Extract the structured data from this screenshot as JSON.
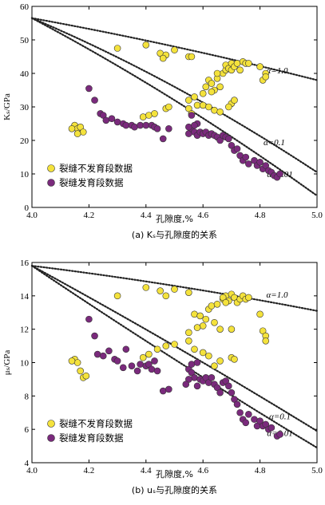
{
  "colors": {
    "yellow": "#f4e23c",
    "purple": "#7a2a7c",
    "stroke": "#333333",
    "curve": "#222222"
  },
  "chart_data": [
    {
      "id": "ks",
      "type": "scatter",
      "caption": "(a) Kₛ与孔隙度的关系",
      "ylabel": "Kₛ/GPa",
      "xlabel": "孔隙度,%",
      "xlim": [
        4.0,
        5.0
      ],
      "ylim": [
        0,
        60
      ],
      "xticks": [
        "4.0",
        "4.2",
        "4.4",
        "4.6",
        "4.8",
        "5.0"
      ],
      "yticks": [
        "0",
        "10",
        "20",
        "30",
        "40",
        "50",
        "60"
      ],
      "legend": [
        "裂缝不发育段数据",
        "裂缝发育段数据"
      ],
      "curves": [
        {
          "label": "α=1.0",
          "points": [
            [
              4.0,
              56.5
            ],
            [
              4.5,
              48.0
            ],
            [
              5.0,
              38.0
            ]
          ]
        },
        {
          "label": "α=0.1",
          "points": [
            [
              4.0,
              56.5
            ],
            [
              4.5,
              36.0
            ],
            [
              5.0,
              10.5
            ]
          ]
        },
        {
          "label": "α=0.01",
          "points": [
            [
              4.0,
              56.5
            ],
            [
              4.5,
              32.0
            ],
            [
              5.0,
              3.5
            ]
          ]
        }
      ],
      "series": [
        {
          "name": "裂缝不发育段数据",
          "points": [
            [
              4.15,
              24.5
            ],
            [
              4.16,
              23.5
            ],
            [
              4.17,
              24.0
            ],
            [
              4.18,
              22.5
            ],
            [
              4.16,
              22.0
            ],
            [
              4.14,
              23.5
            ],
            [
              4.3,
              47.5
            ],
            [
              4.4,
              48.5
            ],
            [
              4.45,
              46.0
            ],
            [
              4.47,
              45.5
            ],
            [
              4.46,
              44.5
            ],
            [
              4.5,
              47.0
            ],
            [
              4.55,
              45.0
            ],
            [
              4.56,
              45.0
            ],
            [
              4.39,
              27.0
            ],
            [
              4.41,
              27.5
            ],
            [
              4.43,
              28.0
            ],
            [
              4.47,
              29.5
            ],
            [
              4.48,
              30.0
            ],
            [
              4.55,
              29.5
            ],
            [
              4.56,
              28.0
            ],
            [
              4.58,
              30.5
            ],
            [
              4.6,
              30.5
            ],
            [
              4.62,
              30.0
            ],
            [
              4.64,
              29.0
            ],
            [
              4.66,
              28.5
            ],
            [
              4.7,
              31.0
            ],
            [
              4.71,
              32.0
            ],
            [
              4.69,
              30.0
            ],
            [
              4.55,
              32.0
            ],
            [
              4.57,
              33.0
            ],
            [
              4.6,
              34.0
            ],
            [
              4.61,
              36.0
            ],
            [
              4.62,
              38.0
            ],
            [
              4.63,
              37.0
            ],
            [
              4.64,
              35.0
            ],
            [
              4.65,
              38.5
            ],
            [
              4.66,
              36.0
            ],
            [
              4.67,
              40.0
            ],
            [
              4.68,
              41.0
            ],
            [
              4.68,
              42.5
            ],
            [
              4.69,
              41.5
            ],
            [
              4.7,
              43.0
            ],
            [
              4.7,
              41.0
            ],
            [
              4.71,
              42.0
            ],
            [
              4.72,
              43.0
            ],
            [
              4.73,
              41.0
            ],
            [
              4.74,
              43.5
            ],
            [
              4.75,
              43.0
            ],
            [
              4.76,
              43.0
            ],
            [
              4.65,
              40.0
            ],
            [
              4.63,
              34.5
            ],
            [
              4.8,
              42.0
            ],
            [
              4.81,
              38.0
            ],
            [
              4.82,
              40.0
            ],
            [
              4.82,
              39.0
            ]
          ]
        },
        {
          "name": "裂缝发育段数据",
          "points": [
            [
              4.2,
              35.5
            ],
            [
              4.22,
              32.0
            ],
            [
              4.24,
              28.0
            ],
            [
              4.25,
              27.5
            ],
            [
              4.26,
              26.0
            ],
            [
              4.28,
              26.5
            ],
            [
              4.3,
              25.5
            ],
            [
              4.32,
              25.0
            ],
            [
              4.33,
              24.5
            ],
            [
              4.35,
              24.5
            ],
            [
              4.36,
              24.0
            ],
            [
              4.38,
              24.5
            ],
            [
              4.4,
              24.5
            ],
            [
              4.42,
              24.5
            ],
            [
              4.43,
              24.0
            ],
            [
              4.44,
              23.5
            ],
            [
              4.46,
              20.5
            ],
            [
              4.48,
              23.5
            ],
            [
              4.55,
              22.0
            ],
            [
              4.56,
              23.5
            ],
            [
              4.57,
              22.5
            ],
            [
              4.58,
              21.5
            ],
            [
              4.59,
              22.5
            ],
            [
              4.6,
              22.0
            ],
            [
              4.61,
              22.5
            ],
            [
              4.62,
              21.5
            ],
            [
              4.63,
              22.0
            ],
            [
              4.64,
              21.5
            ],
            [
              4.65,
              21.0
            ],
            [
              4.66,
              20.0
            ],
            [
              4.67,
              21.5
            ],
            [
              4.68,
              21.0
            ],
            [
              4.69,
              20.5
            ],
            [
              4.7,
              18.5
            ],
            [
              4.71,
              17.0
            ],
            [
              4.72,
              17.5
            ],
            [
              4.73,
              15.5
            ],
            [
              4.74,
              14.0
            ],
            [
              4.75,
              15.0
            ],
            [
              4.76,
              13.0
            ],
            [
              4.78,
              14.0
            ],
            [
              4.79,
              12.5
            ],
            [
              4.8,
              13.5
            ],
            [
              4.81,
              11.5
            ],
            [
              4.82,
              12.5
            ],
            [
              4.83,
              11.0
            ],
            [
              4.84,
              10.5
            ],
            [
              4.85,
              9.5
            ],
            [
              4.86,
              9.0
            ],
            [
              4.87,
              10.0
            ],
            [
              4.56,
              27.5
            ],
            [
              4.58,
              25.0
            ],
            [
              4.55,
              24.0
            ],
            [
              4.57,
              24.5
            ]
          ]
        }
      ]
    },
    {
      "id": "us",
      "type": "scatter",
      "caption": "(b) uₛ与孔隙度的关系",
      "ylabel": "μₛ/GPa",
      "xlabel": "孔隙度,%",
      "xlim": [
        4.0,
        5.0
      ],
      "ylim": [
        4,
        16
      ],
      "xticks": [
        "4.0",
        "4.2",
        "4.4",
        "4.6",
        "4.8",
        "5.0"
      ],
      "yticks": [
        "4",
        "6",
        "8",
        "10",
        "12",
        "14",
        "16"
      ],
      "legend": [
        "裂缝不发育段数据",
        "裂缝发育段数据"
      ],
      "curves": [
        {
          "label": "α=1.0",
          "points": [
            [
              4.0,
              15.8
            ],
            [
              4.5,
              14.6
            ],
            [
              5.0,
              13.1
            ]
          ]
        },
        {
          "label": "α=0.1",
          "points": [
            [
              4.0,
              15.8
            ],
            [
              4.5,
              11.0
            ],
            [
              5.0,
              5.9
            ]
          ]
        },
        {
          "label": "α=0.01",
          "points": [
            [
              4.0,
              15.8
            ],
            [
              4.5,
              10.2
            ],
            [
              5.0,
              4.9
            ]
          ]
        }
      ],
      "series": [
        {
          "name": "裂缝不发育段数据",
          "points": [
            [
              4.15,
              10.2
            ],
            [
              4.16,
              10.0
            ],
            [
              4.14,
              10.1
            ],
            [
              4.17,
              9.5
            ],
            [
              4.18,
              9.1
            ],
            [
              4.19,
              9.2
            ],
            [
              4.3,
              14.0
            ],
            [
              4.4,
              14.5
            ],
            [
              4.45,
              14.3
            ],
            [
              4.47,
              14.0
            ],
            [
              4.5,
              14.4
            ],
            [
              4.55,
              14.2
            ],
            [
              4.39,
              10.3
            ],
            [
              4.41,
              10.5
            ],
            [
              4.44,
              10.8
            ],
            [
              4.47,
              11.0
            ],
            [
              4.5,
              11.1
            ],
            [
              4.55,
              11.3
            ],
            [
              4.57,
              10.8
            ],
            [
              4.6,
              10.6
            ],
            [
              4.62,
              10.4
            ],
            [
              4.64,
              9.8
            ],
            [
              4.66,
              10.1
            ],
            [
              4.7,
              10.3
            ],
            [
              4.71,
              10.2
            ],
            [
              4.55,
              11.8
            ],
            [
              4.57,
              12.9
            ],
            [
              4.59,
              12.8
            ],
            [
              4.6,
              12.2
            ],
            [
              4.61,
              12.6
            ],
            [
              4.62,
              13.2
            ],
            [
              4.63,
              13.4
            ],
            [
              4.64,
              12.4
            ],
            [
              4.65,
              13.5
            ],
            [
              4.66,
              12.0
            ],
            [
              4.67,
              13.8
            ],
            [
              4.68,
              14.0
            ],
            [
              4.69,
              13.7
            ],
            [
              4.7,
              14.1
            ],
            [
              4.71,
              13.9
            ],
            [
              4.72,
              13.6
            ],
            [
              4.73,
              13.8
            ],
            [
              4.74,
              14.0
            ],
            [
              4.75,
              13.8
            ],
            [
              4.76,
              13.9
            ],
            [
              4.67,
              13.9
            ],
            [
              4.68,
              13.6
            ],
            [
              4.8,
              12.9
            ],
            [
              4.81,
              11.9
            ],
            [
              4.82,
              11.6
            ],
            [
              4.82,
              11.3
            ],
            [
              4.7,
              12.0
            ],
            [
              4.58,
              12.1
            ]
          ]
        },
        {
          "name": "裂缝发育段数据",
          "points": [
            [
              4.2,
              12.6
            ],
            [
              4.22,
              11.6
            ],
            [
              4.23,
              10.5
            ],
            [
              4.25,
              10.4
            ],
            [
              4.27,
              10.7
            ],
            [
              4.29,
              10.2
            ],
            [
              4.3,
              10.1
            ],
            [
              4.32,
              9.7
            ],
            [
              4.33,
              10.8
            ],
            [
              4.35,
              9.8
            ],
            [
              4.37,
              9.5
            ],
            [
              4.38,
              9.9
            ],
            [
              4.4,
              9.8
            ],
            [
              4.41,
              9.9
            ],
            [
              4.42,
              9.6
            ],
            [
              4.43,
              10.1
            ],
            [
              4.44,
              9.5
            ],
            [
              4.46,
              8.3
            ],
            [
              4.48,
              8.4
            ],
            [
              4.55,
              9.6
            ],
            [
              4.56,
              9.4
            ],
            [
              4.57,
              9.1
            ],
            [
              4.58,
              8.6
            ],
            [
              4.59,
              9.0
            ],
            [
              4.6,
              8.9
            ],
            [
              4.61,
              9.1
            ],
            [
              4.62,
              8.8
            ],
            [
              4.63,
              9.1
            ],
            [
              4.64,
              8.7
            ],
            [
              4.65,
              8.5
            ],
            [
              4.66,
              8.2
            ],
            [
              4.67,
              8.8
            ],
            [
              4.68,
              8.9
            ],
            [
              4.69,
              8.6
            ],
            [
              4.7,
              8.2
            ],
            [
              4.71,
              7.8
            ],
            [
              4.72,
              7.5
            ],
            [
              4.73,
              7.0
            ],
            [
              4.74,
              6.6
            ],
            [
              4.75,
              6.4
            ],
            [
              4.76,
              6.9
            ],
            [
              4.78,
              6.6
            ],
            [
              4.79,
              6.2
            ],
            [
              4.8,
              6.5
            ],
            [
              4.81,
              6.2
            ],
            [
              4.82,
              6.3
            ],
            [
              4.83,
              6.0
            ],
            [
              4.84,
              6.1
            ],
            [
              4.86,
              5.6
            ],
            [
              4.87,
              5.7
            ],
            [
              4.56,
              9.9
            ],
            [
              4.58,
              10.0
            ],
            [
              4.55,
              9.0
            ],
            [
              4.54,
              8.7
            ]
          ]
        }
      ]
    }
  ]
}
